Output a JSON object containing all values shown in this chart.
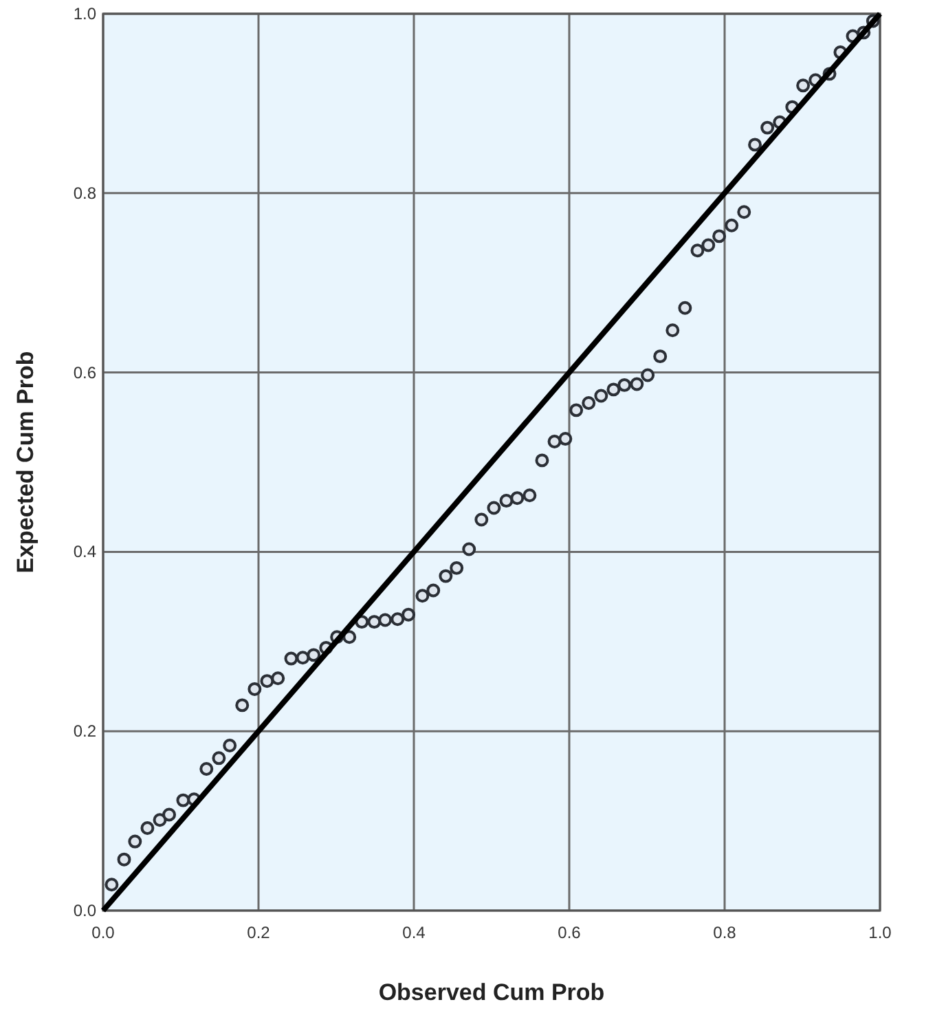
{
  "chart_data": {
    "type": "scatter",
    "xlabel": "Observed Cum Prob",
    "ylabel": "Expected Cum Prob",
    "xlim": [
      0,
      1
    ],
    "ylim": [
      0,
      1
    ],
    "xticks": [
      {
        "value": 0,
        "label": "0.0"
      },
      {
        "value": 0.2,
        "label": "0.2"
      },
      {
        "value": 0.4,
        "label": "0.4"
      },
      {
        "value": 0.6,
        "label": "0.6"
      },
      {
        "value": 0.8,
        "label": "0.8"
      },
      {
        "value": 1,
        "label": "1.0"
      }
    ],
    "yticks": [
      {
        "value": 0,
        "label": "0.0"
      },
      {
        "value": 0.2,
        "label": "0.2"
      },
      {
        "value": 0.4,
        "label": "0.4"
      },
      {
        "value": 0.6,
        "label": "0.6"
      },
      {
        "value": 0.8,
        "label": "0.8"
      },
      {
        "value": 1,
        "label": "1.0"
      }
    ],
    "grid": true,
    "series": [
      {
        "marker": "circle",
        "color": "#2b2f36",
        "x": [
          0.011,
          0.027,
          0.041,
          0.057,
          0.073,
          0.085,
          0.103,
          0.117,
          0.133,
          0.149,
          0.163,
          0.179,
          0.195,
          0.211,
          0.225,
          0.242,
          0.257,
          0.271,
          0.287,
          0.301,
          0.317,
          0.333,
          0.349,
          0.363,
          0.379,
          0.393,
          0.411,
          0.425,
          0.441,
          0.455,
          0.471,
          0.487,
          0.503,
          0.519,
          0.533,
          0.549,
          0.565,
          0.581,
          0.595,
          0.609,
          0.625,
          0.641,
          0.657,
          0.671,
          0.687,
          0.701,
          0.717,
          0.733,
          0.749,
          0.765,
          0.779,
          0.793,
          0.809,
          0.825,
          0.839,
          0.855,
          0.871,
          0.887,
          0.901,
          0.917,
          0.935,
          0.949,
          0.965,
          0.979,
          0.991
        ],
        "values": [
          0.029,
          0.057,
          0.077,
          0.092,
          0.101,
          0.107,
          0.123,
          0.124,
          0.158,
          0.17,
          0.184,
          0.229,
          0.247,
          0.256,
          0.259,
          0.281,
          0.282,
          0.285,
          0.293,
          0.305,
          0.305,
          0.322,
          0.322,
          0.324,
          0.325,
          0.33,
          0.351,
          0.357,
          0.373,
          0.382,
          0.403,
          0.436,
          0.449,
          0.457,
          0.46,
          0.463,
          0.502,
          0.523,
          0.526,
          0.558,
          0.566,
          0.574,
          0.581,
          0.586,
          0.587,
          0.597,
          0.618,
          0.647,
          0.672,
          0.736,
          0.742,
          0.752,
          0.764,
          0.779,
          0.854,
          0.873,
          0.879,
          0.896,
          0.92,
          0.926,
          0.933,
          0.957,
          0.975,
          0.979,
          0.992
        ]
      },
      {
        "type": "line",
        "color": "#000000",
        "x": [
          0,
          1
        ],
        "values": [
          0,
          1
        ]
      }
    ]
  }
}
